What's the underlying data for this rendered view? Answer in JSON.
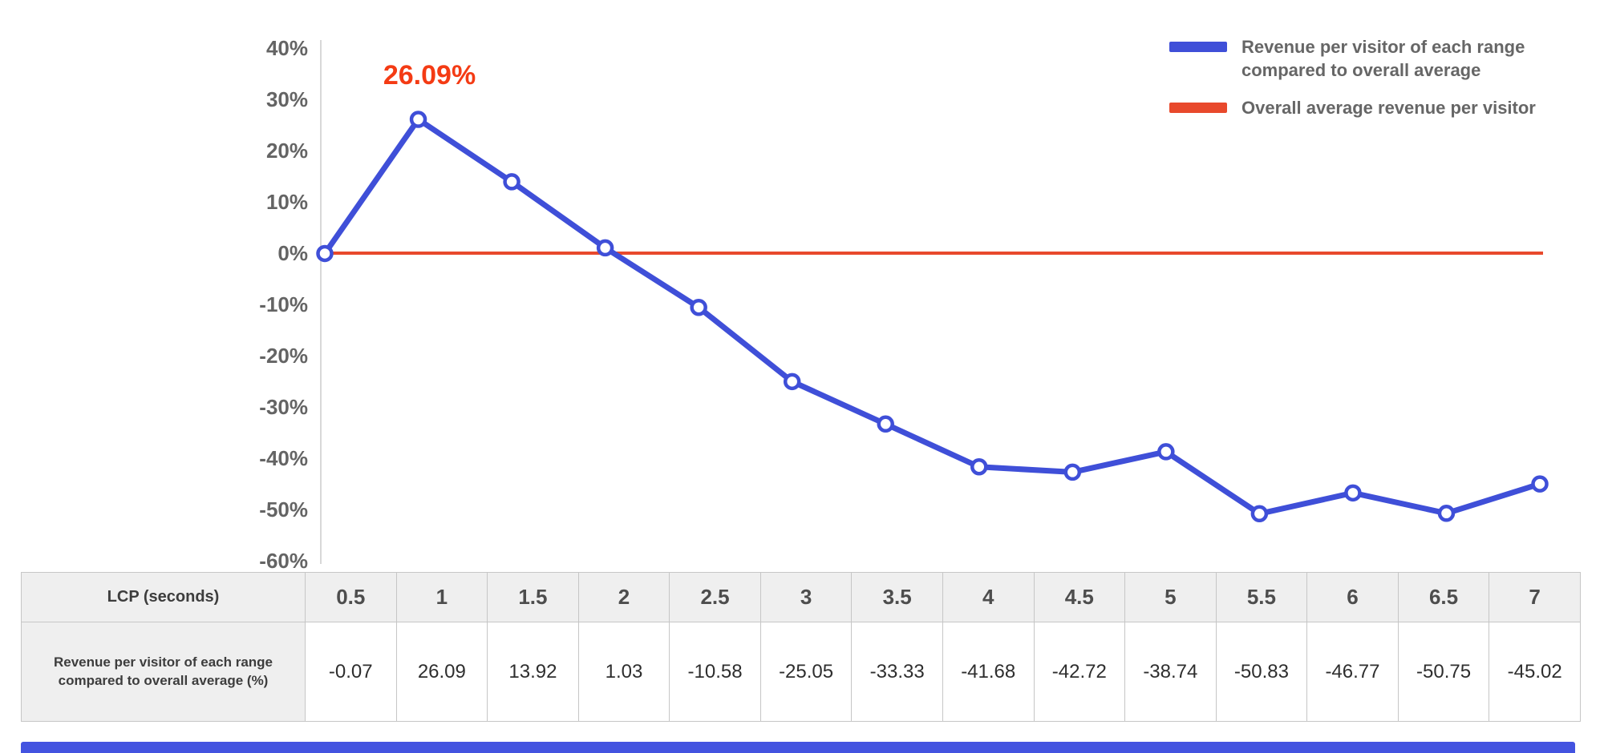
{
  "legend": {
    "series1": "Revenue per visitor of each range compared to overall average",
    "series2": "Overall average revenue per visitor"
  },
  "colors": {
    "series": "#3f4fd8",
    "average": "#e8492c",
    "annotation": "#f43b14",
    "axis_text": "#646464",
    "axis_line": "#d8d8d8",
    "bottom_bar": "#4353e0"
  },
  "chart_data": {
    "type": "line",
    "title": "",
    "x": [
      0.5,
      1,
      1.5,
      2,
      2.5,
      3,
      3.5,
      4,
      4.5,
      5,
      5.5,
      6,
      6.5,
      7
    ],
    "ylim": [
      -60,
      40
    ],
    "ytick_step": 10,
    "ytick_format": "percent",
    "grid": false,
    "legend_position": "top-right",
    "series": [
      {
        "name": "Revenue per visitor of each range compared to overall average",
        "values": [
          -0.07,
          26.09,
          13.92,
          1.03,
          -10.58,
          -25.05,
          -33.33,
          -41.68,
          -42.72,
          -38.74,
          -50.83,
          -46.77,
          -50.75,
          -45.02
        ]
      },
      {
        "name": "Overall average revenue per visitor",
        "values": [
          0,
          0,
          0,
          0,
          0,
          0,
          0,
          0,
          0,
          0,
          0,
          0,
          0,
          0
        ]
      }
    ],
    "annotation": {
      "text": "26.09%",
      "x_index": 1,
      "value": 26.09
    }
  },
  "table": {
    "header_label": "LCP (seconds)",
    "row_label": "Revenue per visitor of each range compared to overall average (%)",
    "columns": [
      "0.5",
      "1",
      "1.5",
      "2",
      "2.5",
      "3",
      "3.5",
      "4",
      "4.5",
      "5",
      "5.5",
      "6",
      "6.5",
      "7"
    ],
    "values": [
      "-0.07",
      "26.09",
      "13.92",
      "1.03",
      "-10.58",
      "-25.05",
      "-33.33",
      "-41.68",
      "-42.72",
      "-38.74",
      "-50.83",
      "-46.77",
      "-50.75",
      "-45.02"
    ]
  }
}
